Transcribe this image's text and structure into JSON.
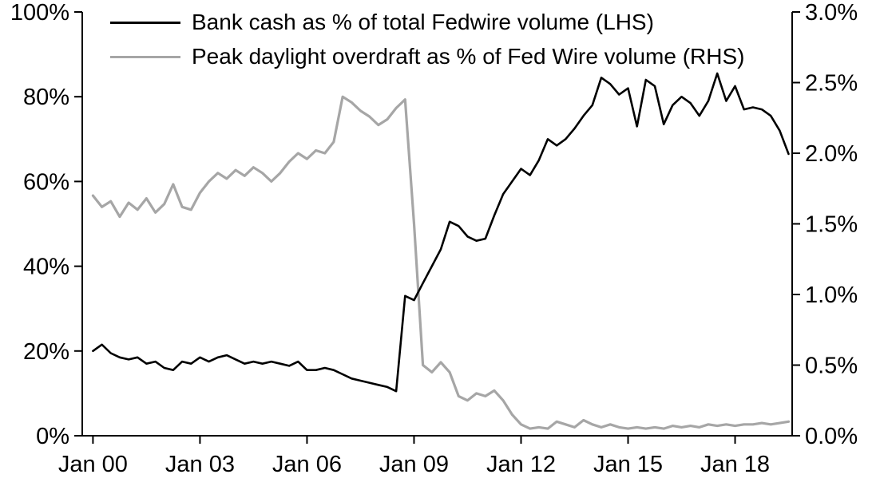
{
  "chart_data": {
    "type": "line",
    "title": "",
    "xlabel": "",
    "grid": false,
    "legend_position": "top-left-inside",
    "x_range": [
      1999.7,
      2019.6
    ],
    "x_tick_years": [
      2000,
      2003,
      2006,
      2009,
      2012,
      2015,
      2018
    ],
    "x_ticks": [
      "Jan 00",
      "Jan 03",
      "Jan 06",
      "Jan 09",
      "Jan 12",
      "Jan 15",
      "Jan 18"
    ],
    "left_axis": {
      "ticks": [
        "0%",
        "20%",
        "40%",
        "60%",
        "80%",
        "100%"
      ],
      "values": [
        0,
        20,
        40,
        60,
        80,
        100
      ],
      "range": [
        0,
        100
      ]
    },
    "right_axis": {
      "ticks": [
        "0.0%",
        "0.5%",
        "1.0%",
        "1.5%",
        "2.0%",
        "2.5%",
        "3.0%"
      ],
      "values": [
        0,
        0.5,
        1,
        1.5,
        2,
        2.5,
        3
      ],
      "range": [
        0,
        3
      ]
    },
    "x": [
      2000,
      2000.25,
      2000.5,
      2000.75,
      2001,
      2001.25,
      2001.5,
      2001.75,
      2002,
      2002.25,
      2002.5,
      2002.75,
      2003,
      2003.25,
      2003.5,
      2003.75,
      2004,
      2004.25,
      2004.5,
      2004.75,
      2005,
      2005.25,
      2005.5,
      2005.75,
      2006,
      2006.25,
      2006.5,
      2006.75,
      2007,
      2007.25,
      2007.5,
      2007.75,
      2008,
      2008.25,
      2008.5,
      2008.75,
      2009,
      2009.25,
      2009.5,
      2009.75,
      2010,
      2010.25,
      2010.5,
      2010.75,
      2011,
      2011.25,
      2011.5,
      2011.75,
      2012,
      2012.25,
      2012.5,
      2012.75,
      2013,
      2013.25,
      2013.5,
      2013.75,
      2014,
      2014.25,
      2014.5,
      2014.75,
      2015,
      2015.25,
      2015.5,
      2015.75,
      2016,
      2016.25,
      2016.5,
      2016.75,
      2017,
      2017.25,
      2017.5,
      2017.75,
      2018,
      2018.25,
      2018.5,
      2018.75,
      2019,
      2019.25,
      2019.5
    ],
    "series": [
      {
        "name": "Bank cash as % of total Fedwire volume (LHS)",
        "axis": "left",
        "color": "#000000",
        "stroke_width": 2.6,
        "values": [
          20,
          21.5,
          19.5,
          18.5,
          18,
          18.5,
          17,
          17.5,
          16,
          15.5,
          17.5,
          17,
          18.5,
          17.5,
          18.5,
          19,
          18,
          17,
          17.5,
          17,
          17.5,
          17,
          16.5,
          17.5,
          15.5,
          15.5,
          16,
          15.5,
          14.5,
          13.5,
          13,
          12.5,
          12,
          11.5,
          10.5,
          33,
          32,
          36,
          40,
          44,
          50.5,
          49.5,
          47,
          46,
          46.5,
          52,
          57,
          60,
          63,
          61.5,
          65,
          70,
          68.5,
          70,
          72.5,
          75.5,
          78,
          84.5,
          83,
          80.5,
          82,
          73,
          84,
          82.5,
          73.5,
          78,
          80,
          78.5,
          75.5,
          79,
          85.5,
          79,
          82.5,
          77,
          77.5,
          77,
          75.5,
          72,
          66.5
        ]
      },
      {
        "name": "Peak daylight overdraft as % of Fed Wire volume (RHS)",
        "axis": "right",
        "color": "#a6a6a6",
        "stroke_width": 3.2,
        "values": [
          1.7,
          1.62,
          1.66,
          1.55,
          1.65,
          1.6,
          1.68,
          1.58,
          1.64,
          1.78,
          1.62,
          1.6,
          1.72,
          1.8,
          1.86,
          1.82,
          1.88,
          1.84,
          1.9,
          1.86,
          1.8,
          1.86,
          1.94,
          2,
          1.96,
          2.02,
          2,
          2.08,
          2.4,
          2.36,
          2.3,
          2.26,
          2.2,
          2.24,
          2.32,
          2.38,
          1.5,
          0.5,
          0.45,
          0.52,
          0.45,
          0.28,
          0.25,
          0.3,
          0.28,
          0.32,
          0.25,
          0.15,
          0.08,
          0.05,
          0.06,
          0.05,
          0.1,
          0.08,
          0.06,
          0.11,
          0.08,
          0.06,
          0.08,
          0.06,
          0.05,
          0.06,
          0.05,
          0.06,
          0.05,
          0.07,
          0.06,
          0.07,
          0.06,
          0.08,
          0.07,
          0.08,
          0.07,
          0.08,
          0.08,
          0.09,
          0.08,
          0.09,
          0.1
        ]
      }
    ]
  }
}
